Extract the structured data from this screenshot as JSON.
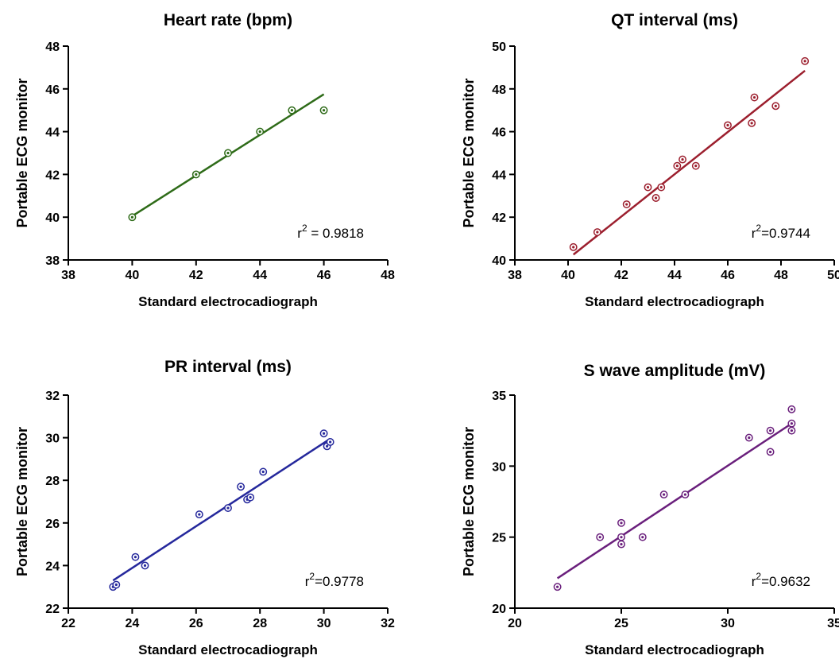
{
  "chart_data": [
    {
      "type": "scatter",
      "title": "Heart rate (bpm)",
      "xlabel": "Standard electrocadiograph",
      "ylabel": "Portable ECG monitor",
      "xlim": [
        38,
        48
      ],
      "ylim": [
        38,
        48
      ],
      "xticks": [
        "38",
        "40",
        "42",
        "44",
        "46",
        "48"
      ],
      "yticks": [
        "38",
        "40",
        "42",
        "44",
        "46",
        "48"
      ],
      "color": "#2e6b18",
      "r2_label": "r",
      "r2_sup": "2",
      "r2_value": " = 0.9818",
      "points": [
        [
          40,
          40
        ],
        [
          42,
          42
        ],
        [
          43,
          43
        ],
        [
          44,
          44
        ],
        [
          45,
          45
        ],
        [
          46,
          45
        ]
      ],
      "fit_line": [
        [
          40,
          40.05
        ],
        [
          46,
          45.75
        ]
      ]
    },
    {
      "type": "scatter",
      "title": "QT interval (ms)",
      "xlabel": "Standard electrocadiograph",
      "ylabel": "Portable ECG monitor",
      "xlim": [
        38,
        50
      ],
      "ylim": [
        40,
        50
      ],
      "xticks": [
        "38",
        "40",
        "42",
        "44",
        "46",
        "48",
        "50"
      ],
      "yticks": [
        "40",
        "42",
        "44",
        "46",
        "48",
        "50"
      ],
      "color": "#9c1f2e",
      "r2_label": "r",
      "r2_sup": "2",
      "r2_value": "=0.9744",
      "points": [
        [
          40.2,
          40.6
        ],
        [
          41.1,
          41.3
        ],
        [
          42.2,
          42.6
        ],
        [
          43.0,
          43.4
        ],
        [
          43.3,
          42.9
        ],
        [
          43.5,
          43.4
        ],
        [
          44.1,
          44.4
        ],
        [
          44.3,
          44.7
        ],
        [
          44.8,
          44.4
        ],
        [
          46.0,
          46.3
        ],
        [
          46.9,
          46.4
        ],
        [
          47.0,
          47.6
        ],
        [
          47.8,
          47.2
        ],
        [
          48.9,
          49.3
        ]
      ],
      "fit_line": [
        [
          40.2,
          40.25
        ],
        [
          48.9,
          48.85
        ]
      ]
    },
    {
      "type": "scatter",
      "title": "PR interval (ms)",
      "xlabel": "Standard electrocadiograph",
      "ylabel": "Portable ECG monitor",
      "xlim": [
        22,
        32
      ],
      "ylim": [
        22,
        32
      ],
      "xticks": [
        "22",
        "24",
        "26",
        "28",
        "30",
        "32"
      ],
      "yticks": [
        "22",
        "24",
        "26",
        "28",
        "30",
        "32"
      ],
      "color": "#25289c",
      "r2_label": "r",
      "r2_sup": "2",
      "r2_value": "=0.9778",
      "points": [
        [
          23.4,
          23.0
        ],
        [
          23.5,
          23.1
        ],
        [
          24.1,
          24.4
        ],
        [
          24.4,
          24.0
        ],
        [
          26.1,
          26.4
        ],
        [
          27.0,
          26.7
        ],
        [
          27.4,
          27.7
        ],
        [
          27.6,
          27.1
        ],
        [
          27.7,
          27.2
        ],
        [
          28.1,
          28.4
        ],
        [
          30.0,
          30.2
        ],
        [
          30.1,
          29.6
        ],
        [
          30.2,
          29.8
        ]
      ],
      "fit_line": [
        [
          23.4,
          23.3
        ],
        [
          30.2,
          29.95
        ]
      ]
    },
    {
      "type": "scatter",
      "title": "S wave amplitude (mV)",
      "xlabel": "Standard electrocadiograph",
      "ylabel": "Portable ECG monitor",
      "xlim": [
        20,
        35
      ],
      "ylim": [
        20,
        35
      ],
      "xticks": [
        "20",
        "25",
        "30",
        "35"
      ],
      "yticks": [
        "20",
        "25",
        "30",
        "35"
      ],
      "color": "#6a1f7c",
      "r2_label": "r",
      "r2_sup": "2",
      "r2_value": "=0.9632",
      "points": [
        [
          22,
          21.5
        ],
        [
          24,
          25
        ],
        [
          25,
          26
        ],
        [
          25,
          25
        ],
        [
          25,
          24.5
        ],
        [
          26,
          25
        ],
        [
          27,
          28
        ],
        [
          28,
          28
        ],
        [
          31,
          32
        ],
        [
          32,
          32.5
        ],
        [
          32,
          31
        ],
        [
          33,
          34
        ],
        [
          33,
          33
        ],
        [
          33,
          32.5
        ]
      ],
      "fit_line": [
        [
          22,
          22.1
        ],
        [
          33,
          33.0
        ]
      ]
    }
  ]
}
